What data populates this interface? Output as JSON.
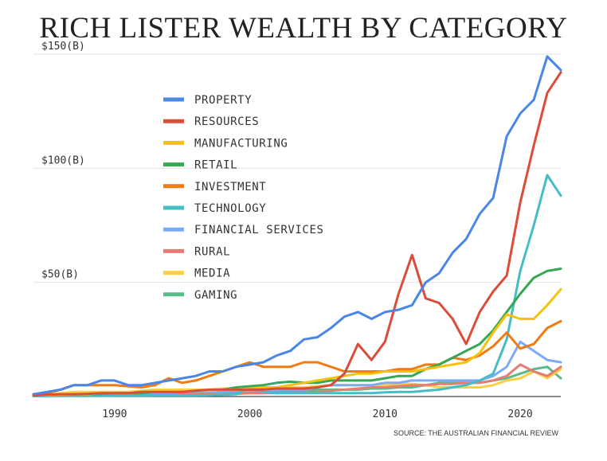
{
  "chart_data": {
    "type": "line",
    "title": "RICH LISTER WEALTH BY CATEGORY",
    "source": "SOURCE: THE AUSTRALIAN FINANCIAL REVIEW",
    "xlabel": "",
    "ylabel": "",
    "xlim": [
      1984,
      2023
    ],
    "ylim": [
      0,
      150
    ],
    "x_ticks": [
      1990,
      2000,
      2010,
      2020
    ],
    "y_ticks": [
      {
        "value": 50,
        "label": "$50(B)"
      },
      {
        "value": 100,
        "label": "$100(B)"
      },
      {
        "value": 150,
        "label": "$150(B)"
      }
    ],
    "grid": "horizontal",
    "legend_position": "top-left",
    "x": [
      1984,
      1985,
      1986,
      1987,
      1988,
      1989,
      1990,
      1991,
      1992,
      1993,
      1994,
      1995,
      1996,
      1997,
      1998,
      1999,
      2000,
      2001,
      2002,
      2003,
      2004,
      2005,
      2006,
      2007,
      2008,
      2009,
      2010,
      2011,
      2012,
      2013,
      2014,
      2015,
      2016,
      2017,
      2018,
      2019,
      2020,
      2021,
      2022,
      2023
    ],
    "series": [
      {
        "name": "PROPERTY",
        "color": "#4a86e8",
        "values": [
          1,
          2,
          3,
          5,
          5,
          7,
          7,
          5,
          5,
          6,
          7,
          8,
          9,
          11,
          11,
          13,
          14,
          15,
          18,
          20,
          25,
          26,
          30,
          35,
          37,
          34,
          37,
          38,
          40,
          50,
          54,
          63,
          69,
          80,
          87,
          114,
          124,
          130,
          149,
          143
        ]
      },
      {
        "name": "RESOURCES",
        "color": "#dd4b39",
        "values": [
          0.5,
          0.8,
          1,
          1,
          1.2,
          1.5,
          1.5,
          1.5,
          2,
          2,
          2,
          2,
          2.5,
          3,
          3,
          3,
          3,
          3,
          3.5,
          3.5,
          3.5,
          4,
          5,
          10,
          23,
          16,
          24,
          45,
          62,
          43,
          41,
          34,
          23,
          37,
          46,
          53,
          85,
          110,
          133,
          142
        ]
      },
      {
        "name": "MANUFACTURING",
        "color": "#f4c20d",
        "values": [
          0.5,
          0.5,
          0.8,
          1,
          1,
          1.5,
          1.5,
          1.5,
          2,
          2,
          2,
          2,
          2.5,
          2.5,
          3,
          3,
          3.5,
          4,
          4,
          5,
          6,
          7,
          8,
          9,
          10,
          10,
          11,
          11,
          11,
          12,
          13,
          14,
          15,
          19,
          28,
          36,
          34,
          34,
          40,
          47
        ]
      },
      {
        "name": "RETAIL",
        "color": "#34a853",
        "values": [
          0.5,
          0.5,
          0.8,
          1,
          1,
          1.2,
          1.5,
          1.5,
          1.5,
          2,
          2,
          2,
          2.5,
          2.5,
          3,
          4,
          4.5,
          5,
          6,
          6.5,
          6,
          6,
          7,
          7,
          7,
          7,
          8,
          9,
          9,
          12,
          14,
          17,
          20,
          23,
          29,
          37,
          45,
          52,
          55,
          56
        ]
      },
      {
        "name": "INVESTMENT",
        "color": "#f07b12",
        "values": [
          1,
          1.5,
          3,
          5,
          5,
          5,
          5,
          4.5,
          4,
          5,
          8,
          6,
          7,
          9,
          11,
          13,
          15,
          13,
          13,
          13,
          15,
          15,
          13,
          11,
          11,
          11,
          11,
          12,
          12,
          14,
          14,
          17,
          16,
          18,
          22,
          28,
          21,
          23,
          30,
          33
        ]
      },
      {
        "name": "TECHNOLOGY",
        "color": "#46bdc6",
        "values": [
          0.2,
          0.2,
          0.3,
          0.3,
          0.3,
          0.3,
          0.4,
          0.4,
          0.4,
          0.5,
          0.5,
          0.5,
          0.5,
          0.6,
          0.8,
          1,
          4,
          2,
          1.5,
          1.5,
          1.5,
          1.5,
          1.5,
          1.5,
          1.5,
          1.5,
          1.8,
          2,
          2,
          2.5,
          3,
          4,
          5,
          7,
          10,
          25,
          55,
          75,
          97,
          88
        ]
      },
      {
        "name": "FINANCIAL SERVICES",
        "color": "#7baaf7",
        "values": [
          0.5,
          0.5,
          0.5,
          0.8,
          1,
          1,
          1,
          1,
          1.2,
          1.5,
          1.5,
          2,
          2,
          2,
          2,
          2.5,
          2.5,
          3,
          3,
          3,
          3,
          4,
          5,
          5,
          5,
          5,
          6,
          6,
          7,
          7,
          7,
          7,
          7,
          7,
          9,
          13,
          24,
          20,
          16,
          15
        ]
      },
      {
        "name": "RURAL",
        "color": "#e67c73",
        "values": [
          0.3,
          0.3,
          0.4,
          0.5,
          0.5,
          0.6,
          0.6,
          0.7,
          0.8,
          1,
          1,
          1,
          1,
          1,
          1.2,
          1.2,
          1.5,
          1.5,
          1.5,
          1.8,
          2,
          2,
          2.5,
          3,
          3.5,
          4,
          4,
          4.5,
          5,
          5,
          5.5,
          5.5,
          6,
          6,
          7,
          9,
          14,
          11,
          9,
          13
        ]
      },
      {
        "name": "MEDIA",
        "color": "#fbcf45",
        "values": [
          0.5,
          1,
          1.5,
          2,
          2,
          2,
          2,
          2,
          2.5,
          3,
          3,
          3,
          3,
          3,
          3.5,
          3.5,
          4,
          4,
          4,
          4,
          4,
          4.5,
          5,
          5,
          5,
          5,
          5,
          5.5,
          5.5,
          5,
          4,
          4,
          4,
          4,
          5,
          7,
          8,
          11,
          8,
          12
        ]
      },
      {
        "name": "GAMING",
        "color": "#57bb8a",
        "values": [
          0.2,
          0.3,
          0.3,
          0.4,
          0.5,
          0.6,
          0.8,
          1,
          1,
          1,
          1.2,
          1.5,
          1.5,
          1.5,
          1.5,
          2,
          2,
          2,
          2,
          2.5,
          2.5,
          3,
          3,
          3,
          3,
          3.5,
          3.5,
          4,
          4,
          5,
          6,
          6,
          6,
          6,
          7,
          8,
          10,
          12,
          13,
          8
        ]
      }
    ]
  }
}
